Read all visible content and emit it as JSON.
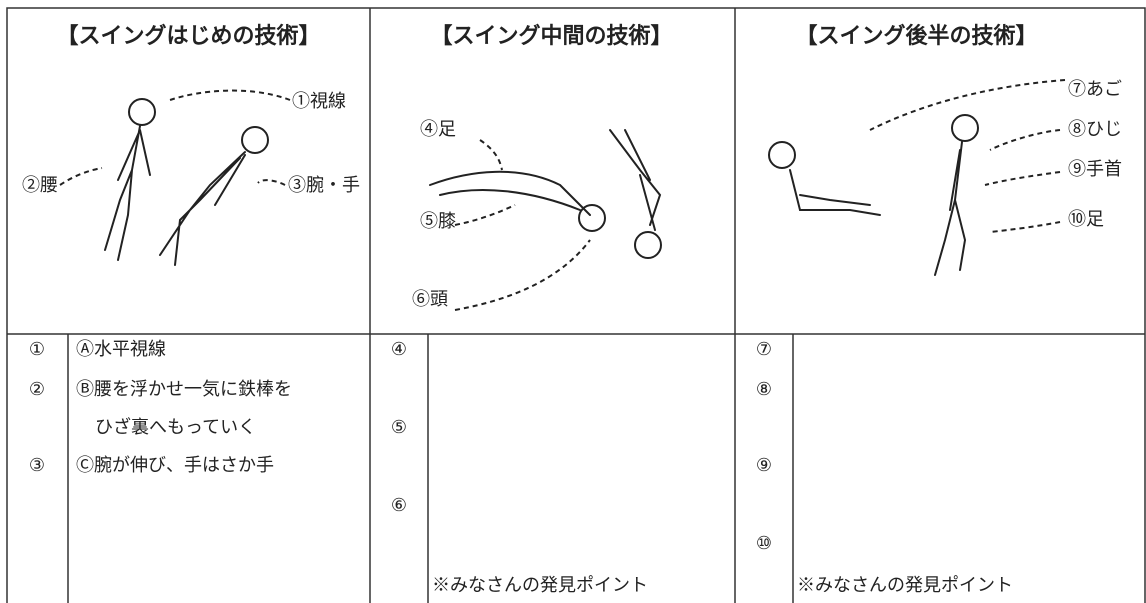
{
  "columns": [
    {
      "title": "【スイングはじめの技術】",
      "figure_labels": [
        "①視線",
        "②腰",
        "③腕・手"
      ],
      "items": [
        {
          "num": "①",
          "lines": [
            "Ⓐ水平視線"
          ]
        },
        {
          "num": "②",
          "lines": [
            "Ⓑ腰を浮かせ一気に鉄棒を",
            "ひざ裏へもっていく"
          ]
        },
        {
          "num": "③",
          "lines": [
            "Ⓒ腕が伸び、手はさか手"
          ]
        }
      ]
    },
    {
      "title": "【スイング中間の技術】",
      "figure_labels": [
        "④足",
        "⑤膝",
        "⑥頭"
      ],
      "items": [
        {
          "num": "④"
        },
        {
          "num": "⑤"
        },
        {
          "num": "⑥"
        }
      ],
      "note": "※みなさんの発見ポイント"
    },
    {
      "title": "【スイング後半の技術】",
      "figure_labels": [
        "⑦あご",
        "⑧ひじ",
        "⑨手首",
        "⑩足"
      ],
      "items": [
        {
          "num": "⑦"
        },
        {
          "num": "⑧"
        },
        {
          "num": "⑨"
        },
        {
          "num": "⑩"
        }
      ],
      "note": "※みなさんの発見ポイント"
    }
  ]
}
